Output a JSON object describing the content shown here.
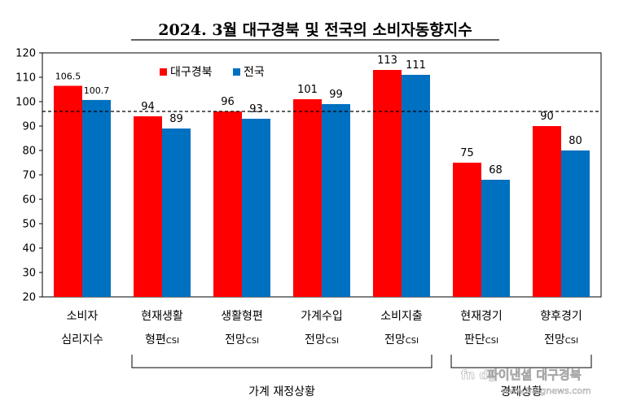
{
  "chart_data": {
    "type": "bar",
    "title": "2024. 3월 대구경북 및 전국의 소비자동향지수",
    "categories": [
      {
        "line1": "소비자",
        "line2": "심리지수",
        "suffix": ""
      },
      {
        "line1": "현재생활",
        "line2": "형편",
        "suffix": "CSI"
      },
      {
        "line1": "생활형편",
        "line2": "전망",
        "suffix": "CSI"
      },
      {
        "line1": "가계수입",
        "line2": "전망",
        "suffix": "CSI"
      },
      {
        "line1": "소비지출",
        "line2": "전망",
        "suffix": "CSI"
      },
      {
        "line1": "현재경기",
        "line2": "판단",
        "suffix": "CSI"
      },
      {
        "line1": "향후경기",
        "line2": "전망",
        "suffix": "CSI"
      }
    ],
    "series": [
      {
        "name": "대구경북",
        "color": "#ff0000",
        "values": [
          106.5,
          94,
          96,
          101,
          113,
          75,
          90
        ],
        "labels": [
          "106.5",
          "94",
          "96",
          "101",
          "113",
          "75",
          "90"
        ]
      },
      {
        "name": "전국",
        "color": "#0070c0",
        "values": [
          100.7,
          89,
          93,
          99,
          111,
          68,
          80
        ],
        "labels": [
          "100.7",
          "89",
          "93",
          "99",
          "111",
          "68",
          "80"
        ]
      }
    ],
    "ylim": [
      20,
      120
    ],
    "yticks": [
      20,
      30,
      40,
      50,
      60,
      70,
      80,
      90,
      100,
      110,
      120
    ],
    "reference_line": 96,
    "legend": "top-left",
    "groups": [
      {
        "label": "가계 재정상황",
        "from": 1,
        "to": 4
      },
      {
        "label": "경제상황",
        "from": 5,
        "to": 6
      }
    ]
  },
  "watermark": {
    "line1": "파이낸셜 대구경북",
    "line2": "www.fndgnews.com",
    "logo_text": "fn dg"
  }
}
